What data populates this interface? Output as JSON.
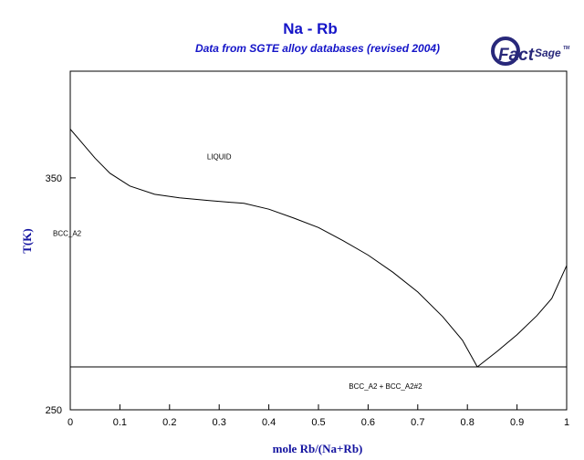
{
  "chart_data": {
    "type": "line",
    "title": "Na - Rb",
    "subtitle": "Data from SGTE alloy databases (revised 2004)",
    "xlabel": "mole Rb/(Na+Rb)",
    "ylabel": "T(K)",
    "xlim": [
      0,
      1
    ],
    "ylim": [
      250,
      396
    ],
    "x_ticks": [
      "0",
      "0.1",
      "0.2",
      "0.3",
      "0.4",
      "0.5",
      "0.6",
      "0.7",
      "0.8",
      "0.9",
      "1"
    ],
    "y_ticks": [
      "250",
      "350"
    ],
    "grid": false,
    "series": [
      {
        "values": [
          [
            0.0,
            371.0
          ],
          [
            0.02,
            366.0
          ],
          [
            0.05,
            358.5
          ],
          [
            0.08,
            352.0
          ],
          [
            0.12,
            346.5
          ],
          [
            0.17,
            342.9
          ],
          [
            0.22,
            341.4
          ],
          [
            0.28,
            340.2
          ],
          [
            0.35,
            339.0
          ],
          [
            0.4,
            336.5
          ],
          [
            0.45,
            332.7
          ],
          [
            0.5,
            328.6
          ],
          [
            0.55,
            322.9
          ],
          [
            0.6,
            316.7
          ],
          [
            0.65,
            309.3
          ],
          [
            0.7,
            300.8
          ],
          [
            0.75,
            290.2
          ],
          [
            0.79,
            280.0
          ],
          [
            0.82,
            268.5
          ]
        ]
      },
      {
        "values": [
          [
            0.82,
            268.5
          ],
          [
            0.86,
            275.2
          ],
          [
            0.9,
            282.4
          ],
          [
            0.94,
            290.6
          ],
          [
            0.97,
            298.0
          ],
          [
            1.0,
            312.2
          ]
        ]
      },
      {
        "values": [
          [
            0.0,
            268.5
          ],
          [
            1.0,
            268.5
          ]
        ]
      },
      {
        "values": [
          [
            0.0,
            250.0
          ],
          [
            0.0,
            371.0
          ]
        ]
      },
      {
        "values": [
          [
            1.0,
            250.0
          ],
          [
            1.0,
            312.2
          ]
        ]
      }
    ],
    "annotations": [
      {
        "text": "LIQUID",
        "x": 0.3,
        "y": 358.0
      },
      {
        "text": "BCC_A2",
        "x": 0.0,
        "y": 325.0
      },
      {
        "text": "BCC_A2 + BCC_A2#2",
        "x": 0.635,
        "y": 259.0
      }
    ]
  },
  "logo": {
    "brand_first": "Fact",
    "brand_second": "Sage",
    "mark": "TM"
  },
  "colors": {
    "title": "#1414c8",
    "axis_label": "#1414a0",
    "curve": "#000000",
    "logo_blue": "#28287a"
  }
}
